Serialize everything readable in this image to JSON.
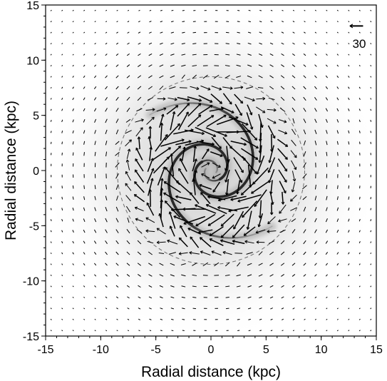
{
  "chart_data": {
    "type": "vector-field",
    "xlabel": "Radial distance (kpc)",
    "ylabel": "Radial distance (kpc)",
    "xlim": [
      -15,
      15
    ],
    "ylim": [
      -15,
      15
    ],
    "x_ticks": [
      -15,
      -10,
      -5,
      0,
      5,
      10,
      15
    ],
    "y_ticks": [
      -15,
      -10,
      -5,
      0,
      5,
      10,
      15
    ],
    "grid": false,
    "vector_grid": {
      "spacing": 1,
      "range": [
        -14.5,
        14.5
      ],
      "pattern": "clockwise rotation with enhanced streaming inside the spiral arms"
    },
    "scale_arrow": {
      "label": "30",
      "length": 1.2
    },
    "dashed_circle_radius": 8.5,
    "spiral_arms": {
      "count": 2,
      "inner_radius": 0.5,
      "outer_radius": 7.5,
      "sense": "trailing",
      "background": "grayscale density"
    }
  }
}
